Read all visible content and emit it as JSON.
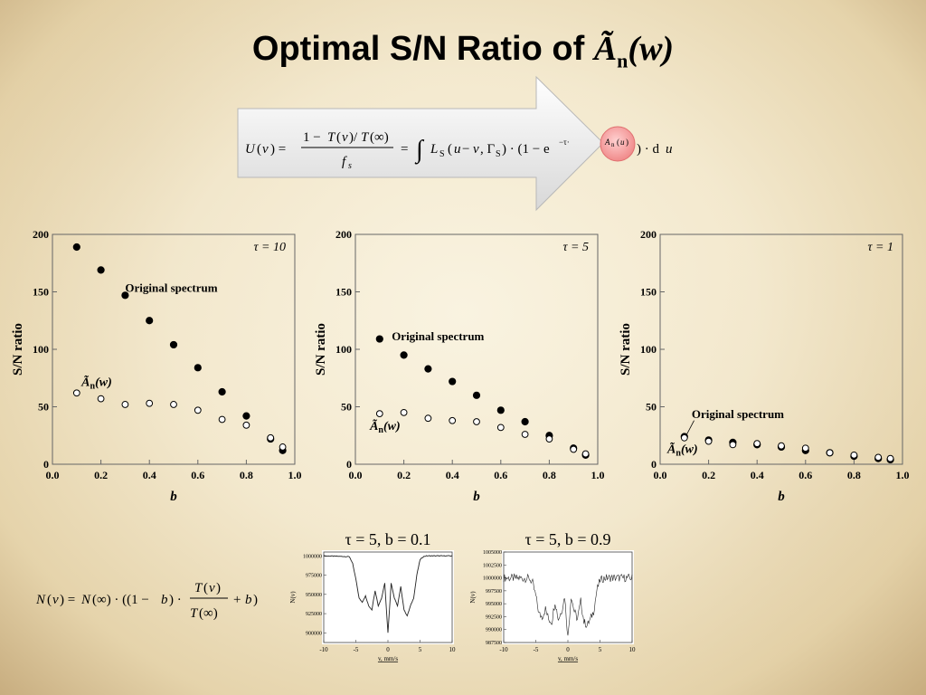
{
  "slide": {
    "title_text": "Optimal S/N Ratio of ",
    "title_symbol": "Ã",
    "title_subscript": "n",
    "title_argument": "(w)"
  },
  "formulas": {
    "top": "U(v) = [1 − T(v)/T(∞)] / f_s = ∫ L_S(u − v, Γ_S) · (1 − e^(−τ·Ã_n(u))) · du",
    "bottom": "N(v) = N(∞) · ((1 − b) · T(v)/T(∞) + b)"
  },
  "chart_data": [
    {
      "type": "scatter",
      "annotation": "τ = 10",
      "xlabel": "b",
      "ylabel": "S/N ratio",
      "xlim": [
        0.0,
        1.0
      ],
      "ylim": [
        0,
        200
      ],
      "xticks": [
        "0.0",
        "0.2",
        "0.4",
        "0.6",
        "0.8",
        "1.0"
      ],
      "yticks": [
        "0",
        "50",
        "100",
        "150",
        "200"
      ],
      "series": [
        {
          "name": "Original spectrum",
          "marker": "filled",
          "x": [
            0.1,
            0.2,
            0.3,
            0.4,
            0.5,
            0.6,
            0.7,
            0.8,
            0.9,
            0.95
          ],
          "y": [
            189,
            169,
            147,
            125,
            104,
            84,
            63,
            42,
            22,
            12
          ]
        },
        {
          "name": "Ã_n(w)",
          "marker": "open",
          "x": [
            0.1,
            0.2,
            0.3,
            0.4,
            0.5,
            0.6,
            0.7,
            0.8,
            0.9,
            0.95
          ],
          "y": [
            62,
            57,
            52,
            53,
            52,
            47,
            39,
            34,
            23,
            15
          ]
        }
      ]
    },
    {
      "type": "scatter",
      "annotation": "τ = 5",
      "xlabel": "b",
      "ylabel": "S/N ratio",
      "xlim": [
        0.0,
        1.0
      ],
      "ylim": [
        0,
        200
      ],
      "xticks": [
        "0.0",
        "0.2",
        "0.4",
        "0.6",
        "0.8",
        "1.0"
      ],
      "yticks": [
        "0",
        "50",
        "100",
        "150",
        "200"
      ],
      "series": [
        {
          "name": "Original spectrum",
          "marker": "filled",
          "x": [
            0.1,
            0.2,
            0.3,
            0.4,
            0.5,
            0.6,
            0.7,
            0.8,
            0.9,
            0.95
          ],
          "y": [
            109,
            95,
            83,
            72,
            60,
            47,
            37,
            25,
            14,
            8
          ]
        },
        {
          "name": "Ã_n(w)",
          "marker": "open",
          "x": [
            0.1,
            0.2,
            0.3,
            0.4,
            0.5,
            0.6,
            0.7,
            0.8,
            0.9,
            0.95
          ],
          "y": [
            44,
            45,
            40,
            38,
            37,
            32,
            26,
            22,
            13,
            9
          ]
        }
      ]
    },
    {
      "type": "scatter",
      "annotation": "τ = 1",
      "xlabel": "b",
      "ylabel": "S/N ratio",
      "xlim": [
        0.0,
        1.0
      ],
      "ylim": [
        0,
        200
      ],
      "xticks": [
        "0.0",
        "0.2",
        "0.4",
        "0.6",
        "0.8",
        "1.0"
      ],
      "yticks": [
        "0",
        "50",
        "100",
        "150",
        "200"
      ],
      "series": [
        {
          "name": "Original spectrum",
          "marker": "filled",
          "x": [
            0.1,
            0.2,
            0.3,
            0.4,
            0.5,
            0.6,
            0.7,
            0.8,
            0.9,
            0.95
          ],
          "y": [
            24,
            21,
            19,
            17,
            15,
            12,
            10,
            7,
            5,
            4
          ]
        },
        {
          "name": "Ã_n(w)",
          "marker": "open",
          "x": [
            0.1,
            0.2,
            0.3,
            0.4,
            0.5,
            0.6,
            0.7,
            0.8,
            0.9,
            0.95
          ],
          "y": [
            23,
            20,
            17,
            18,
            16,
            14,
            10,
            8,
            6,
            5
          ]
        }
      ]
    },
    {
      "type": "line",
      "title": "τ = 5, b = 0.1",
      "xlabel": "v, mm/s",
      "ylabel": "N(v)",
      "xlim": [
        -10,
        10
      ],
      "ylim": [
        887500,
        1005000
      ],
      "xticks": [
        "-10",
        "-5",
        "0",
        "5",
        "10"
      ],
      "yticks": [
        "900000",
        "925000",
        "950000",
        "975000",
        "1000000"
      ],
      "x": [
        -10,
        -6,
        -5.5,
        -5,
        -4.5,
        -4,
        -3.5,
        -3,
        -2.5,
        -2,
        -1.5,
        -1,
        -0.5,
        0,
        0.5,
        1,
        1.5,
        2,
        2.5,
        3,
        3.5,
        4,
        4.5,
        5,
        5.5,
        6,
        10
      ],
      "y": [
        1000000,
        999000,
        990000,
        970000,
        945000,
        940000,
        948000,
        935000,
        930000,
        955000,
        935000,
        945000,
        965000,
        900000,
        965000,
        945000,
        935000,
        960000,
        930000,
        922000,
        935000,
        945000,
        975000,
        995000,
        999000,
        1000000,
        1000000
      ]
    },
    {
      "type": "line",
      "title": "τ = 5, b = 0.9",
      "xlabel": "v, mm/s",
      "ylabel": "N(v)",
      "xlim": [
        -10,
        10
      ],
      "ylim": [
        987500,
        1005000
      ],
      "xticks": [
        "-10",
        "-5",
        "0",
        "5",
        "10"
      ],
      "yticks": [
        "987500",
        "990000",
        "992500",
        "995000",
        "997500",
        "1000000",
        "1002500",
        "1005000"
      ],
      "x": [
        -10,
        -6,
        -5.5,
        -5,
        -4.5,
        -4,
        -3.5,
        -3,
        -2.5,
        -2,
        -1.5,
        -1,
        -0.5,
        0,
        0.5,
        1,
        1.5,
        2,
        2.5,
        3,
        3.5,
        4,
        4.5,
        5,
        5.5,
        6,
        10
      ],
      "y": [
        1000000,
        999900,
        999000,
        996500,
        993000,
        992500,
        994000,
        992000,
        991500,
        995500,
        992000,
        993500,
        996500,
        988500,
        996500,
        993500,
        992000,
        995500,
        991500,
        990800,
        992000,
        993500,
        997500,
        999500,
        999900,
        1000000,
        1000000
      ]
    }
  ]
}
